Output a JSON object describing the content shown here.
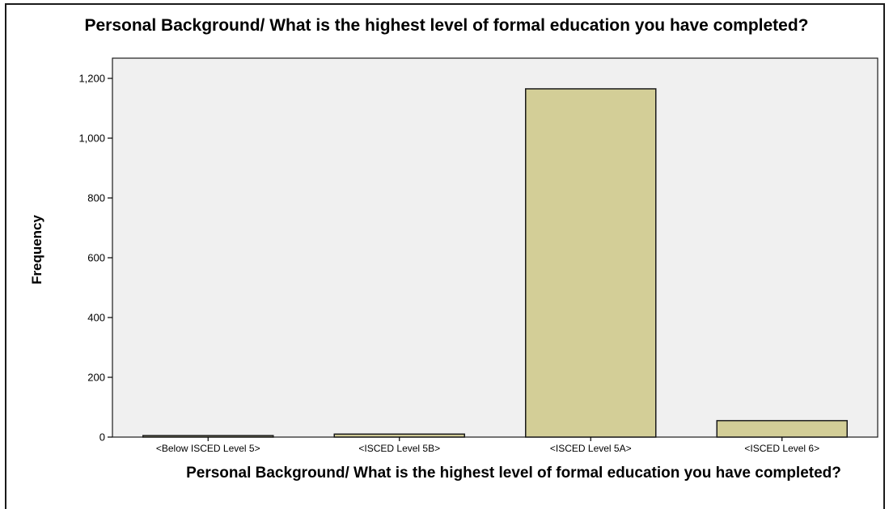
{
  "chart_data": {
    "type": "bar",
    "title": "Personal Background/ What is the highest level of formal education you have completed?",
    "xlabel": "Personal Background/ What is the highest level of formal education you have completed?",
    "ylabel": "Frequency",
    "categories": [
      "<Below ISCED Level 5>",
      "<ISCED Level 5B>",
      "<ISCED Level 5A>",
      "<ISCED Level 6>"
    ],
    "values": [
      5,
      10,
      1165,
      55
    ],
    "ylim": [
      0,
      1200
    ],
    "yticks": [
      0,
      200,
      400,
      600,
      800,
      1000,
      1200
    ],
    "ytick_labels": [
      "0",
      "200",
      "400",
      "600",
      "800",
      "1,000",
      "1,200"
    ],
    "grid": false,
    "colors": {
      "plot_background": "#f0f0f0",
      "bar_fill": "#d3ce97",
      "bar_stroke": "#1a1a1a"
    }
  }
}
